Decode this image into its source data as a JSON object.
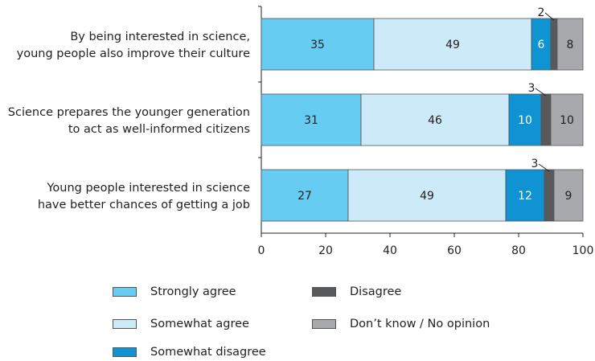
{
  "chart_data": {
    "type": "bar",
    "orientation": "horizontal",
    "stacked": true,
    "categories": [
      [
        "By being interested in science,",
        "young people also improve their culture"
      ],
      [
        "Science prepares the younger generation",
        "to act as well-informed citizens"
      ],
      [
        "Young people interested in science",
        "have better chances of getting a job"
      ]
    ],
    "series": [
      {
        "name": "Strongly agree",
        "color": "#66ccf2",
        "values": [
          35,
          31,
          27
        ]
      },
      {
        "name": "Somewhat agree",
        "color": "#cdeaf8",
        "values": [
          49,
          46,
          49
        ]
      },
      {
        "name": "Somewhat disagree",
        "color": "#0f93d2",
        "values": [
          6,
          10,
          12
        ]
      },
      {
        "name": "Disagree",
        "color": "#58595b",
        "values": [
          2,
          3,
          3
        ]
      },
      {
        "name": "Don’t know / No opinion",
        "color": "#a7a9ac",
        "values": [
          8,
          10,
          9
        ]
      }
    ],
    "xlim": [
      0,
      100
    ],
    "xticks": [
      "0",
      "20",
      "40",
      "60",
      "80",
      "100"
    ],
    "grid": false,
    "legend_position": "bottom",
    "legend_order": [
      "Strongly agree",
      "Somewhat agree",
      "Somewhat disagree",
      "Disagree",
      "Don’t know / No opinion"
    ]
  }
}
